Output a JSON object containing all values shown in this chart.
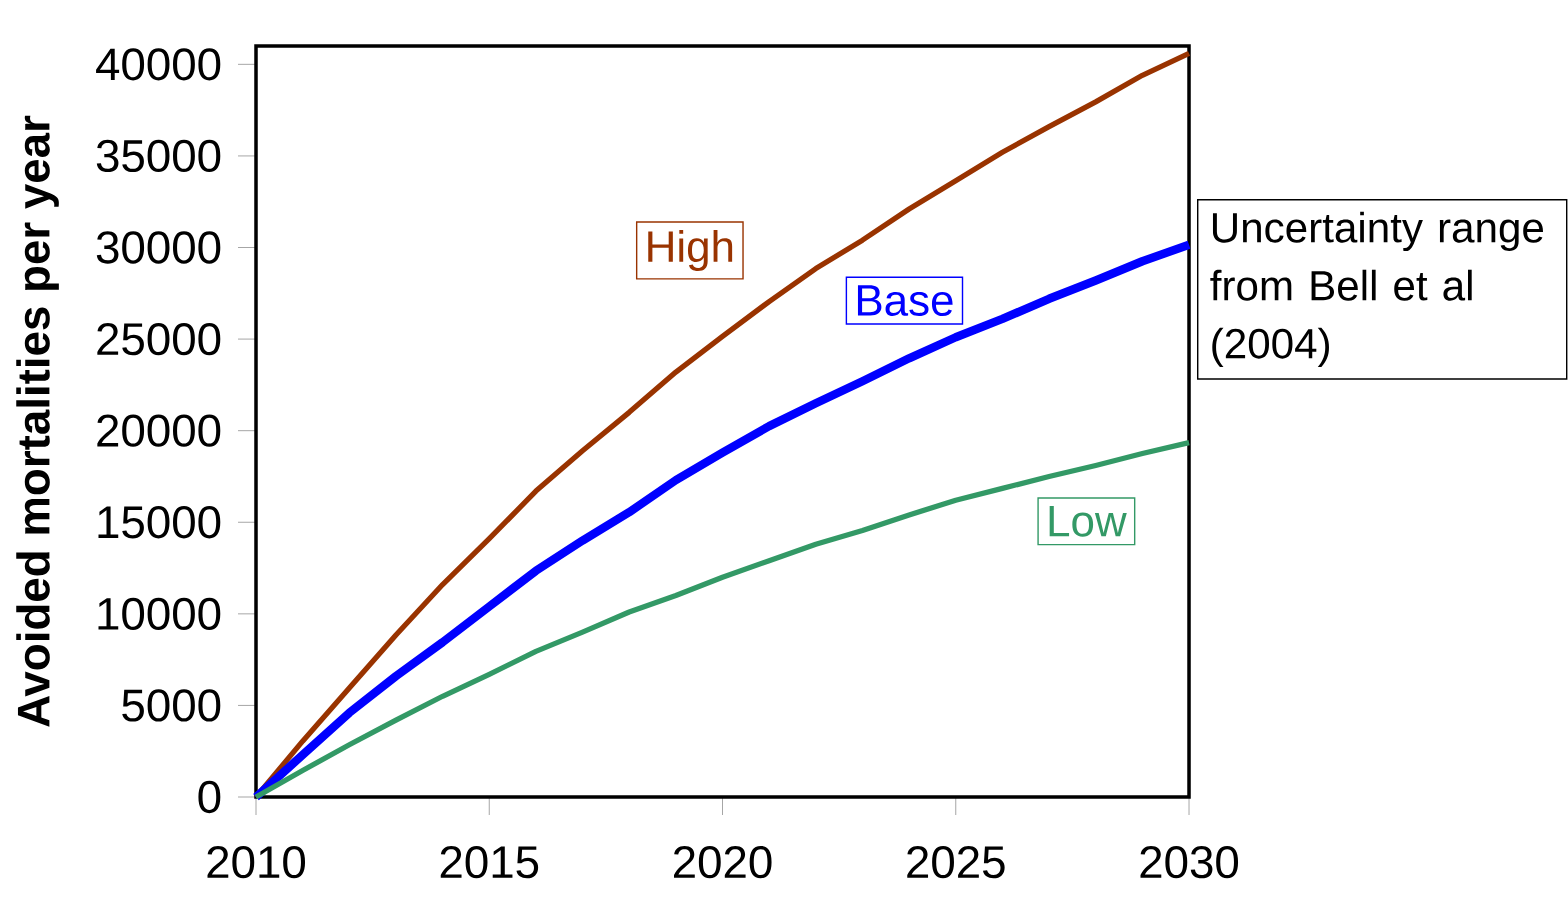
{
  "chart_data": {
    "type": "line",
    "ylabel": "Avoided mortalities per year",
    "x": [
      2010,
      2011,
      2012,
      2013,
      2014,
      2015,
      2016,
      2017,
      2018,
      2019,
      2020,
      2021,
      2022,
      2023,
      2024,
      2025,
      2026,
      2027,
      2028,
      2029,
      2030
    ],
    "series": [
      {
        "name": "High",
        "color": "#993300",
        "values": [
          0,
          3050,
          5950,
          8850,
          11600,
          14100,
          16700,
          18900,
          21000,
          23200,
          25150,
          27050,
          28850,
          30400,
          32100,
          33650,
          35200,
          36600,
          37950,
          39400,
          40600
        ]
      },
      {
        "name": "Base",
        "color": "#0000ff",
        "values": [
          0,
          2300,
          4600,
          6600,
          8450,
          10400,
          12350,
          14000,
          15550,
          17300,
          18800,
          20250,
          21500,
          22700,
          23950,
          25100,
          26100,
          27200,
          28200,
          29250,
          30150
        ]
      },
      {
        "name": "Low",
        "color": "#339966",
        "values": [
          0,
          1450,
          2850,
          4200,
          5500,
          6700,
          7950,
          9000,
          10100,
          11000,
          12000,
          12900,
          13800,
          14550,
          15400,
          16200,
          16850,
          17500,
          18100,
          18750,
          19350
        ]
      }
    ],
    "xlim": [
      2010,
      2030
    ],
    "ylim": [
      0,
      41000
    ],
    "xticks": [
      2010,
      2015,
      2020,
      2025,
      2030
    ],
    "yticks": [
      0,
      5000,
      10000,
      15000,
      20000,
      25000,
      30000,
      35000,
      40000
    ],
    "grid": false,
    "legend": false,
    "marker": "none",
    "line_style": "solid",
    "annotations": [
      "Uncertainty range from Bell et al (2004)"
    ]
  }
}
